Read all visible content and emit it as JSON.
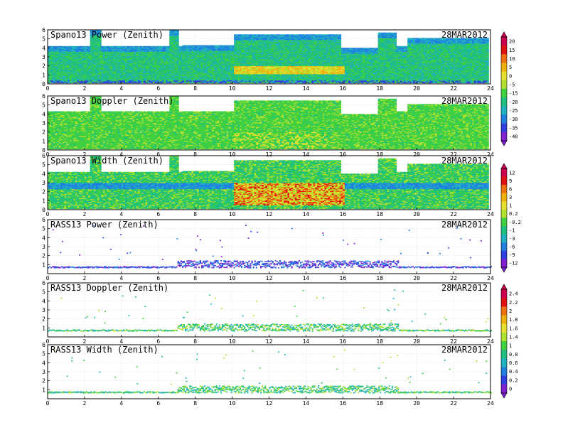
{
  "chart_data": [
    {
      "type": "heatmap",
      "title": "Spano13 Power (Zenith)",
      "date": "28MAR2012",
      "x_ticks": [
        "0",
        "2",
        "4",
        "6",
        "8",
        "10",
        "12",
        "14",
        "16",
        "18",
        "20",
        "22",
        "24"
      ],
      "y_ticks": [
        "0",
        "1",
        "2",
        "3",
        "4",
        "5",
        "6"
      ],
      "xlim": [
        0,
        24
      ],
      "ylim": [
        0,
        6
      ],
      "grid": true,
      "colorbar": {
        "ticks": [
          "20",
          "15",
          "10",
          "5",
          "0",
          "-5",
          "-15",
          "-20",
          "-25",
          "-30",
          "-35",
          "-40"
        ],
        "colors": [
          "#cc0050",
          "#e01010",
          "#f07010",
          "#f0b010",
          "#e8e030",
          "#b0e030",
          "#40d040",
          "#20c080",
          "#20b0c0",
          "#2080e0",
          "#3040e0",
          "#8020d0"
        ]
      },
      "coverage": {
        "base_top_km": 4.2,
        "segments": [
          {
            "x": [
              2.3,
              2.9
            ],
            "top": 5.9
          },
          {
            "x": [
              6.5,
              7.0
            ],
            "top": 5.9
          },
          {
            "x": [
              10.0,
              15.8
            ],
            "top": 5.4
          },
          {
            "x": [
              15.8,
              17.8
            ],
            "top": 4.0
          },
          {
            "x": [
              17.8,
              18.8
            ],
            "top": 5.6
          },
          {
            "x": [
              19.5,
              23.9
            ],
            "top": 5.0
          }
        ],
        "enhanced_layer": {
          "x": [
            10.0,
            16.0
          ],
          "km": [
            1.0,
            2.0
          ],
          "level": "5 to 15"
        }
      }
    },
    {
      "type": "heatmap",
      "title": "Spano13 Doppler (Zenith)",
      "date": "28MAR2012",
      "x_ticks": [
        "0",
        "2",
        "4",
        "6",
        "8",
        "10",
        "12",
        "14",
        "16",
        "18",
        "20",
        "22",
        "24"
      ],
      "y_ticks": [
        "0",
        "1",
        "2",
        "3",
        "4",
        "5",
        "6"
      ],
      "xlim": [
        0,
        24
      ],
      "ylim": [
        0,
        6
      ],
      "grid": true,
      "coverage": {
        "base_top_km": 4.3,
        "segments": [
          {
            "x": [
              2.3,
              2.9
            ],
            "top": 5.9
          },
          {
            "x": [
              6.5,
              7.0
            ],
            "top": 5.9
          },
          {
            "x": [
              10.0,
              15.8
            ],
            "top": 5.4
          },
          {
            "x": [
              15.8,
              17.8
            ],
            "top": 4.0
          },
          {
            "x": [
              17.8,
              18.8
            ],
            "top": 5.6
          },
          {
            "x": [
              19.5,
              23.9
            ],
            "top": 5.0
          }
        ]
      }
    },
    {
      "type": "heatmap",
      "title": "Spano13 Width (Zenith)",
      "date": "28MAR2012",
      "x_ticks": [
        "0",
        "2",
        "4",
        "6",
        "8",
        "10",
        "12",
        "14",
        "16",
        "18",
        "20",
        "22",
        "24"
      ],
      "y_ticks": [
        "0",
        "1",
        "2",
        "3",
        "4",
        "5",
        "6"
      ],
      "xlim": [
        0,
        24
      ],
      "ylim": [
        0,
        6
      ],
      "grid": true,
      "colorbar": {
        "ticks": [
          "12",
          "9",
          "6",
          "3",
          "1",
          "0.2",
          "-0.2",
          "-1",
          "-3",
          "-6",
          "-9",
          "-12"
        ],
        "colors": [
          "#cc0050",
          "#e01010",
          "#f07010",
          "#f0b010",
          "#e8e030",
          "#b0e030",
          "#40d040",
          "#20c080",
          "#20b0c0",
          "#2080e0",
          "#3040e0",
          "#8020d0"
        ]
      },
      "coverage": {
        "base_top_km": 4.2,
        "segments": [
          {
            "x": [
              2.3,
              2.9
            ],
            "top": 5.9
          },
          {
            "x": [
              6.5,
              7.0
            ],
            "top": 5.9
          },
          {
            "x": [
              10.0,
              15.8
            ],
            "top": 5.4
          },
          {
            "x": [
              15.8,
              17.8
            ],
            "top": 4.0
          },
          {
            "x": [
              17.8,
              18.8
            ],
            "top": 5.6
          },
          {
            "x": [
              19.5,
              23.9
            ],
            "top": 5.0
          }
        ],
        "enhanced_layer": {
          "x": [
            10.0,
            16.0
          ],
          "km": [
            0.5,
            3.0
          ],
          "level": "high"
        }
      }
    },
    {
      "type": "scatter",
      "title": "RASS13 Power (Zenith)",
      "date": "28MAR2012",
      "x_ticks": [
        "0",
        "2",
        "4",
        "6",
        "8",
        "10",
        "12",
        "14",
        "16",
        "18",
        "20",
        "22",
        "24"
      ],
      "y_ticks": [
        "1",
        "2",
        "3",
        "4",
        "5",
        "6"
      ],
      "xlim": [
        0,
        24
      ],
      "ylim": [
        0,
        6
      ],
      "grid": true,
      "profile": {
        "base_km": 0.7,
        "dense_x": [
          7.0,
          19.0
        ],
        "dense_top_km": 1.5,
        "colors": [
          "#8020d0",
          "#3040e0",
          "#2080e0"
        ]
      }
    },
    {
      "type": "scatter",
      "title": "RASS13 Doppler (Zenith)",
      "date": "28MAR2012",
      "x_ticks": [
        "0",
        "2",
        "4",
        "6",
        "8",
        "10",
        "12",
        "14",
        "16",
        "18",
        "20",
        "22",
        "24"
      ],
      "y_ticks": [
        "1",
        "2",
        "3",
        "4",
        "5",
        "6"
      ],
      "xlim": [
        0,
        24
      ],
      "ylim": [
        0,
        6
      ],
      "grid": true,
      "colorbar": {
        "ticks": [
          "2.4",
          "2.2",
          "2",
          "1.8",
          "1.6",
          "1.4",
          "1",
          "0.8",
          "0.6",
          "0.4",
          "0.2",
          "0"
        ],
        "colors": [
          "#cc0050",
          "#e01010",
          "#f07010",
          "#f0b010",
          "#e8e030",
          "#b0e030",
          "#40d040",
          "#20c080",
          "#20b0c0",
          "#2080e0",
          "#3040e0",
          "#8020d0"
        ]
      },
      "profile": {
        "base_km": 0.7,
        "dense_x": [
          7.0,
          19.0
        ],
        "dense_top_km": 1.5,
        "colors": [
          "#40d040",
          "#20c080",
          "#b0e030",
          "#20b0c0"
        ]
      }
    },
    {
      "type": "scatter",
      "title": "RASS13 Width (Zenith)",
      "date": "28MAR2012",
      "x_ticks": [
        "0",
        "2",
        "4",
        "6",
        "8",
        "10",
        "12",
        "14",
        "16",
        "18",
        "20",
        "22",
        "24"
      ],
      "y_ticks": [
        "1",
        "2",
        "3",
        "4",
        "5",
        "6"
      ],
      "xlim": [
        0,
        24
      ],
      "ylim": [
        0,
        6
      ],
      "grid": true,
      "profile": {
        "base_km": 0.7,
        "dense_x": [
          7.0,
          19.0
        ],
        "dense_top_km": 1.5,
        "colors": [
          "#40d040",
          "#20c080",
          "#20b0c0",
          "#b0e030"
        ]
      }
    }
  ]
}
